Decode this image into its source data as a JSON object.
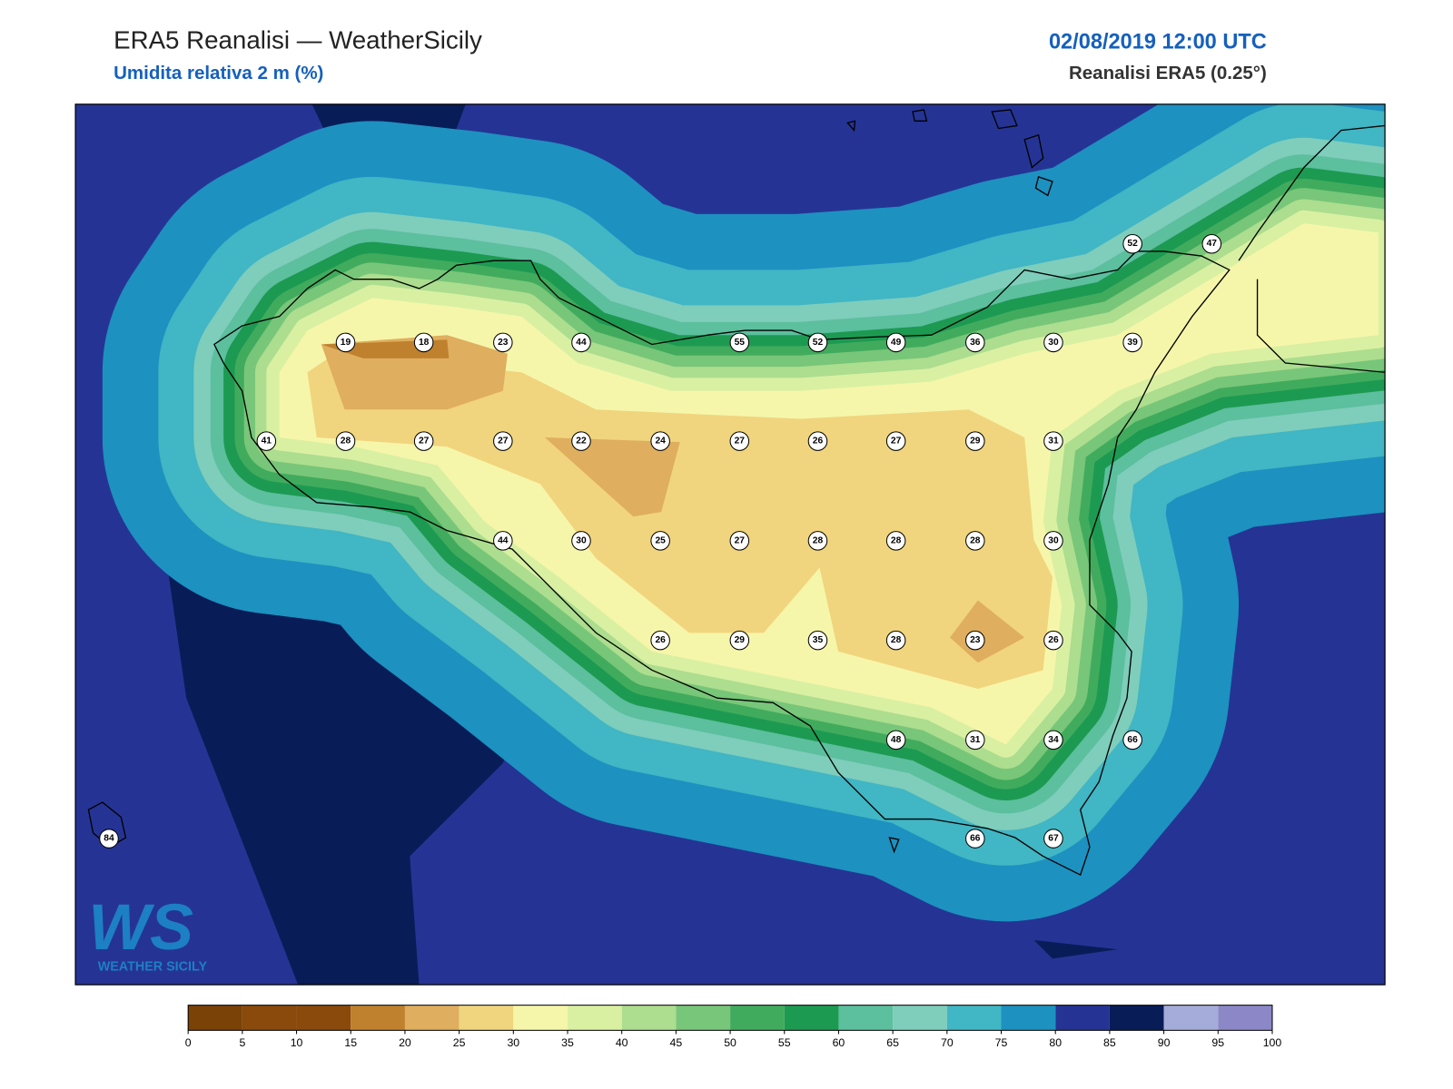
{
  "header": {
    "title": "ERA5 Reanalisi — WeatherSicily",
    "subtitle": "Umidita relativa 2 m (%)",
    "datetime": "02/08/2019 12:00 UTC",
    "source": "Reanalisi ERA5 (0.25°)"
  },
  "stations": [
    52,
    47,
    19,
    18,
    23,
    44,
    55,
    52,
    49,
    36,
    30,
    39,
    41,
    28,
    27,
    27,
    22,
    24,
    27,
    26,
    27,
    29,
    31,
    44,
    30,
    25,
    27,
    28,
    28,
    28,
    30,
    26,
    29,
    35,
    28,
    23,
    26,
    48,
    31,
    34,
    66,
    84,
    66,
    67
  ],
  "colorbar": {
    "ticks": [
      0,
      5,
      10,
      15,
      20,
      25,
      30,
      35,
      40,
      45,
      50,
      55,
      60,
      65,
      70,
      75,
      80,
      85,
      90,
      95,
      100
    ],
    "colors": [
      "#7b4208",
      "#8a4a0b",
      "#8a4a0b",
      "#bf812d",
      "#dfae5e",
      "#f0d57e",
      "#f6f6aa",
      "#d9f0a3",
      "#addd8e",
      "#78c679",
      "#41ab5d",
      "#1d9a52",
      "#5cbf9e",
      "#7fcdbb",
      "#41b6c4",
      "#1d91c0",
      "#253494",
      "#081d58",
      "#a6acd9",
      "#8c88c8"
    ]
  },
  "logo": {
    "main": "WS",
    "sub": "WEATHER SICILY"
  }
}
